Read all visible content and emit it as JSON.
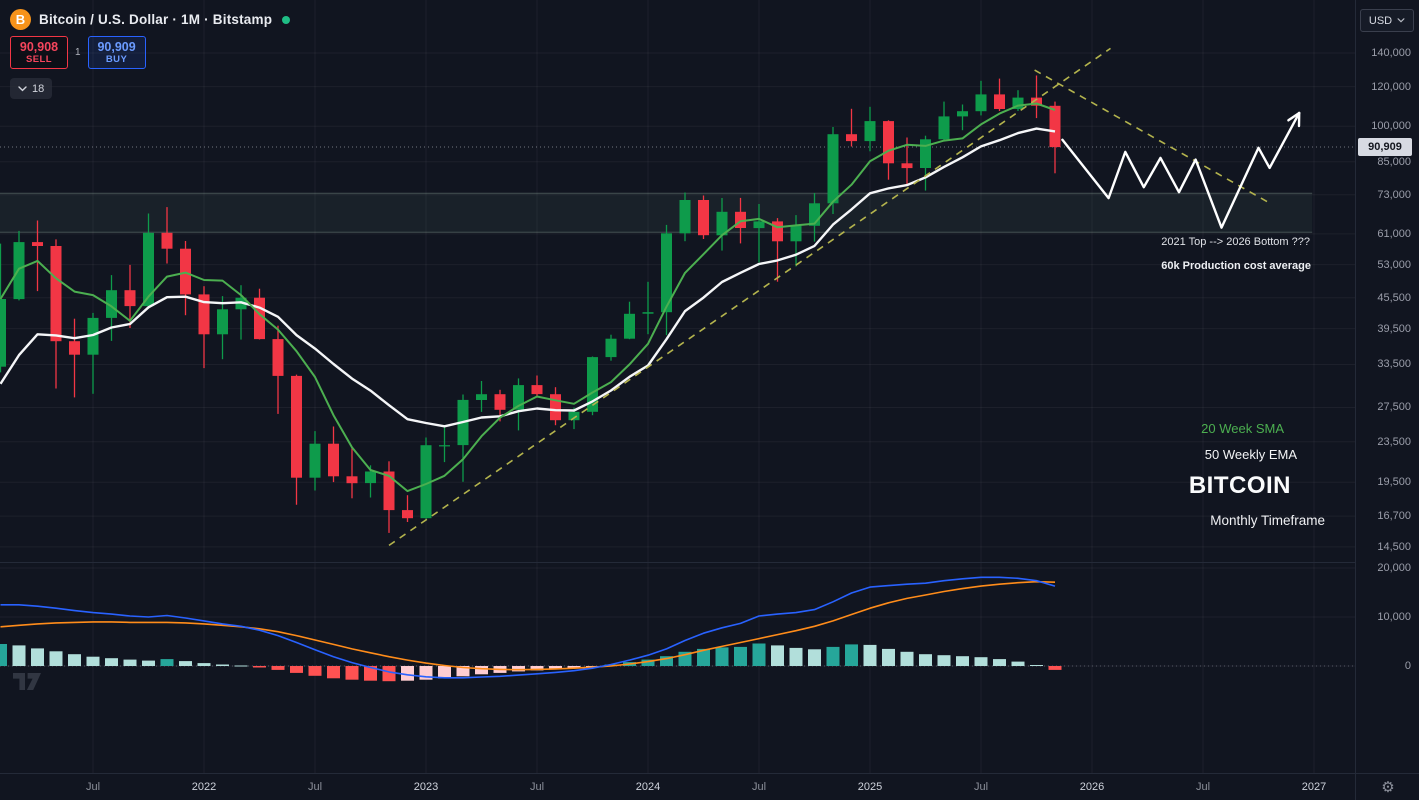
{
  "header": {
    "symbol_title": "Bitcoin / U.S. Dollar · 1M · Bitstamp",
    "sell_price": "90,908",
    "sell_label": "SELL",
    "buy_price": "90,909",
    "buy_label": "BUY",
    "spread": "1",
    "indicators_count": "18"
  },
  "currency_selector": {
    "value": "USD"
  },
  "annotations": {
    "top_bottom_note": "2021 Top -->  2026 Bottom ???",
    "production_cost_note": "60k Production cost average",
    "sma_label": "20 Week SMA",
    "ema_label": "50 Weekly EMA",
    "symbol_watermark": "BITCOIN",
    "timeframe_watermark": "Monthly Timeframe"
  },
  "price_axis": {
    "last_price": "90,909",
    "labels": [
      140000,
      120000,
      100000,
      85000,
      73000,
      61000,
      53000,
      45500,
      39500,
      33500,
      27500,
      23500,
      19500,
      16700,
      14500
    ],
    "indicator_labels": [
      20000,
      10000,
      0
    ]
  },
  "time_axis": {
    "labels": [
      {
        "t": "Jul",
        "m": 6
      },
      {
        "t": "2022",
        "m": 12
      },
      {
        "t": "Jul",
        "m": 18
      },
      {
        "t": "2023",
        "m": 24
      },
      {
        "t": "Jul",
        "m": 30
      },
      {
        "t": "2024",
        "m": 36
      },
      {
        "t": "Jul",
        "m": 42
      },
      {
        "t": "2025",
        "m": 48
      },
      {
        "t": "Jul",
        "m": 54
      },
      {
        "t": "2026",
        "m": 60
      },
      {
        "t": "Jul",
        "m": 66
      },
      {
        "t": "2027",
        "m": 72
      }
    ]
  },
  "chart_data": {
    "type": "candlestick",
    "title": "Bitcoin / U.S. Dollar",
    "exchange": "Bitstamp",
    "interval": "1M",
    "price_scale": "log",
    "last_price": 90909,
    "visible_price_range": [
      13900,
      147000
    ],
    "time_unit": "months_since_2021-01",
    "months_start": "2021-02",
    "candles": [
      [
        33150,
        58350,
        32300,
        45240
      ],
      [
        45240,
        61844,
        44950,
        58760
      ],
      [
        58760,
        64895,
        46930,
        57720
      ],
      [
        57720,
        59500,
        30000,
        37280
      ],
      [
        37280,
        41330,
        28805,
        35045
      ],
      [
        35045,
        42448,
        29278,
        41490
      ],
      [
        41490,
        50500,
        37332,
        47110
      ],
      [
        47110,
        52920,
        39600,
        43790
      ],
      [
        43790,
        66999,
        43283,
        61320
      ],
      [
        61320,
        69000,
        53256,
        57005
      ],
      [
        57005,
        59053,
        42000,
        46215
      ],
      [
        46215,
        47990,
        32950,
        38480
      ],
      [
        38480,
        45850,
        34320,
        43155
      ],
      [
        43155,
        48200,
        37550,
        45525
      ],
      [
        45525,
        47450,
        37578,
        37640
      ],
      [
        37640,
        40023,
        26700,
        31790
      ],
      [
        31790,
        31980,
        17585,
        19925
      ],
      [
        19925,
        24668,
        18780,
        23290
      ],
      [
        23290,
        25200,
        19520,
        20048
      ],
      [
        20048,
        22800,
        18125,
        19425
      ],
      [
        19425,
        21085,
        18190,
        20490
      ],
      [
        20490,
        21480,
        15460,
        17165
      ],
      [
        17165,
        18385,
        16256,
        16540
      ],
      [
        16540,
        23960,
        16490,
        23125
      ],
      [
        23125,
        25250,
        21400,
        23130
      ],
      [
        23130,
        29180,
        19550,
        28465
      ],
      [
        28465,
        31050,
        26940,
        29230
      ],
      [
        29230,
        29820,
        25800,
        27210
      ],
      [
        27210,
        31430,
        24750,
        30470
      ],
      [
        30470,
        31850,
        28850,
        29230
      ],
      [
        29230,
        30175,
        25350,
        25940
      ],
      [
        25940,
        27480,
        24900,
        26960
      ],
      [
        26960,
        34750,
        26540,
        34650
      ],
      [
        34650,
        38415,
        34080,
        37710
      ],
      [
        37710,
        44700,
        37615,
        42280
      ],
      [
        42280,
        48970,
        38500,
        42580
      ],
      [
        42580,
        63585,
        38330,
        61170
      ],
      [
        61170,
        73794,
        59005,
        71280
      ],
      [
        71280,
        72780,
        59600,
        60635
      ],
      [
        60635,
        71950,
        56500,
        67530
      ],
      [
        67530,
        71980,
        58400,
        62675
      ],
      [
        62675,
        70000,
        53500,
        64625
      ],
      [
        64625,
        65600,
        49000,
        58970
      ],
      [
        58970,
        66500,
        52550,
        63330
      ],
      [
        63330,
        73620,
        58895,
        70215
      ],
      [
        70215,
        99655,
        66835,
        96450
      ],
      [
        96450,
        108365,
        91150,
        93430
      ],
      [
        93430,
        109358,
        89165,
        102405
      ],
      [
        102405,
        102780,
        78245,
        84375
      ],
      [
        84375,
        95000,
        76600,
        82550
      ],
      [
        82550,
        95770,
        74420,
        94180
      ],
      [
        94180,
        112000,
        93340,
        104640
      ],
      [
        104640,
        110530,
        98240,
        107170
      ],
      [
        107170,
        123218,
        105115,
        115770
      ],
      [
        115770,
        124457,
        107270,
        108240
      ],
      [
        108240,
        118000,
        107250,
        114060
      ],
      [
        114060,
        126270,
        103850,
        109880
      ],
      [
        109880,
        112000,
        80600,
        90909
      ]
    ],
    "overlays": {
      "sma_period": 5,
      "ema_period": 12,
      "ema_seed": 28000,
      "sma_label": "20 Week SMA",
      "ema_label": "50 Weekly EMA"
    },
    "zone": {
      "label": "2021 top / 2026 bottom zone",
      "price_from": 61500,
      "price_to": 73500,
      "end_m": 71.9
    },
    "trendlines": [
      {
        "name": "ascending-support",
        "points": [
          [
            22.0,
            14600
          ],
          [
            61.0,
            143000
          ]
        ]
      },
      {
        "name": "descending-resistance",
        "points": [
          [
            56.9,
            129400
          ],
          [
            69.7,
            69950
          ]
        ]
      }
    ],
    "projection_path": [
      [
        58.4,
        94000
      ],
      [
        60.9,
        71900
      ],
      [
        61.8,
        88900
      ],
      [
        62.8,
        75600
      ],
      [
        63.7,
        86500
      ],
      [
        64.7,
        73900
      ],
      [
        65.6,
        85800
      ],
      [
        67.0,
        62800
      ],
      [
        69.0,
        90600
      ],
      [
        69.6,
        82600
      ],
      [
        71.2,
        106300
      ]
    ],
    "macd": {
      "line": [
        12500,
        12500,
        12200,
        11800,
        11300,
        10900,
        10600,
        10200,
        10000,
        10300,
        9800,
        9200,
        8600,
        8100,
        7300,
        6200,
        4800,
        3300,
        1900,
        700,
        -300,
        -1200,
        -1800,
        -2200,
        -2400,
        -2400,
        -2250,
        -2100,
        -1850,
        -1600,
        -1300,
        -950,
        -450,
        300,
        1200,
        2200,
        3500,
        5200,
        6700,
        7800,
        8700,
        10200,
        10600,
        10900,
        11500,
        13100,
        14900,
        16100,
        16400,
        16700,
        16900,
        17400,
        17800,
        18100,
        18100,
        17900,
        17400,
        16300
      ],
      "signal": [
        8000,
        8300,
        8600,
        8800,
        8900,
        9000,
        9000,
        8900,
        8900,
        8900,
        8800,
        8600,
        8300,
        8000,
        7600,
        7000,
        6200,
        5300,
        4400,
        3500,
        2700,
        1900,
        1200,
        600,
        100,
        -300,
        -550,
        -700,
        -750,
        -700,
        -600,
        -450,
        -250,
        0,
        400,
        900,
        1500,
        2300,
        3200,
        4000,
        4800,
        5600,
        6400,
        7200,
        8100,
        9200,
        10500,
        11800,
        12900,
        13800,
        14500,
        15200,
        15800,
        16300,
        16700,
        17000,
        17200,
        17100
      ],
      "histogram": [
        4500,
        4200,
        3600,
        3000,
        2400,
        1900,
        1600,
        1300,
        1100,
        1400,
        1000,
        600,
        300,
        100,
        -300,
        -800,
        -1400,
        -2000,
        -2500,
        -2800,
        -3000,
        -3100,
        -3000,
        -2800,
        -2500,
        -2100,
        -1700,
        -1400,
        -1100,
        -900,
        -700,
        -500,
        -200,
        300,
        800,
        1300,
        2000,
        2900,
        3500,
        3800,
        3900,
        4600,
        4200,
        3700,
        3400,
        3900,
        4400,
        4300,
        3500,
        2900,
        2400,
        2200,
        2000,
        1800,
        1400,
        900,
        200,
        -800
      ]
    },
    "colors": {
      "up": "#0e9b4b",
      "down": "#f23645",
      "sma": "#4caf50",
      "ema": "#f5f6f8",
      "macd_line": "#2962ff",
      "macd_signal": "#ff8c1a",
      "hist_grow_pos": "#26a69a",
      "hist_fall_pos": "#b2dfdb",
      "hist_grow_neg": "#ff5252",
      "hist_fall_neg": "#ffcdd2",
      "trendline": "#b3b34d",
      "projection": "#ffffff",
      "zone_fill": "rgba(125,175,150,0.08)",
      "zone_border": "rgba(150,172,160,0.38)",
      "grid": "rgba(255,255,255,0.05)",
      "accent_orange": "#f7931a",
      "sell_red": "#f23645",
      "buy_blue": "#2962ff",
      "status_green": "#1fbd85"
    }
  }
}
